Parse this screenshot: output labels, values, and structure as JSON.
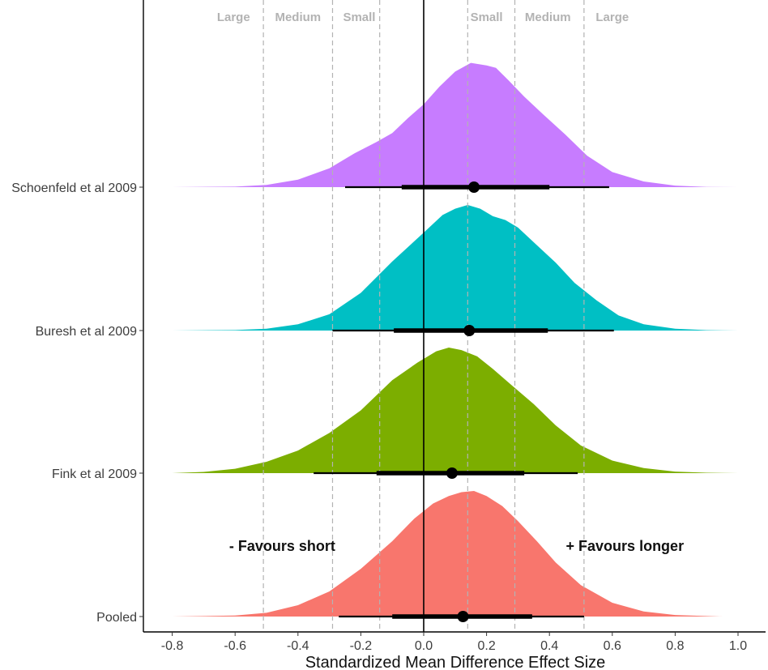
{
  "chart_data": {
    "type": "density-ridge",
    "xlabel": "Standardized Mean Difference Effect Size",
    "xlim": [
      -0.9,
      1.05
    ],
    "x_ticks": [
      -0.8,
      -0.6,
      -0.4,
      -0.2,
      0.0,
      0.2,
      0.4,
      0.6,
      0.8,
      1.0
    ],
    "x_tick_labels": [
      "-0.8",
      "-0.6",
      "-0.4",
      "-0.2",
      "0.0",
      "0.2",
      "0.4",
      "0.6",
      "0.8",
      "1.0"
    ],
    "categories": [
      "Schoenfeld et al 2009",
      "Buresh et al 2009",
      "Fink et al 2009",
      "Pooled"
    ],
    "grid": false,
    "reference_line": 0.0,
    "threshold_lines": [
      -0.51,
      -0.29,
      -0.14,
      0.14,
      0.29,
      0.51
    ],
    "zone_labels": [
      {
        "text": "Large",
        "x": -0.605
      },
      {
        "text": "Medium",
        "x": -0.4
      },
      {
        "text": "Small",
        "x": -0.205
      },
      {
        "text": "Small",
        "x": 0.2
      },
      {
        "text": "Medium",
        "x": 0.395
      },
      {
        "text": "Large",
        "x": 0.6
      }
    ],
    "annotations": [
      {
        "text": "- Favours short",
        "x": -0.45
      },
      {
        "text": "+ Favours longer",
        "x": 0.64
      }
    ],
    "series": [
      {
        "name": "Schoenfeld et al 2009",
        "color": "#C77CFF",
        "support": [
          -0.8,
          1.0
        ],
        "shape": [
          [
            -0.8,
            0
          ],
          [
            -0.6,
            0.004
          ],
          [
            -0.5,
            0.018
          ],
          [
            -0.4,
            0.06
          ],
          [
            -0.3,
            0.15
          ],
          [
            -0.22,
            0.27
          ],
          [
            -0.15,
            0.36
          ],
          [
            -0.1,
            0.43
          ],
          [
            -0.05,
            0.55
          ],
          [
            0.0,
            0.66
          ],
          [
            0.05,
            0.8
          ],
          [
            0.1,
            0.92
          ],
          [
            0.15,
            0.99
          ],
          [
            0.2,
            0.97
          ],
          [
            0.23,
            0.95
          ],
          [
            0.27,
            0.85
          ],
          [
            0.32,
            0.72
          ],
          [
            0.38,
            0.58
          ],
          [
            0.45,
            0.42
          ],
          [
            0.52,
            0.25
          ],
          [
            0.6,
            0.12
          ],
          [
            0.7,
            0.045
          ],
          [
            0.8,
            0.012
          ],
          [
            0.9,
            0.002
          ],
          [
            1.0,
            0
          ]
        ],
        "point": 0.16,
        "inner": [
          -0.07,
          0.4
        ],
        "outer": [
          -0.25,
          0.59
        ]
      },
      {
        "name": "Buresh et al 2009",
        "color": "#00BFC4",
        "support": [
          -0.8,
          1.0
        ],
        "shape": [
          [
            -0.8,
            0
          ],
          [
            -0.6,
            0.004
          ],
          [
            -0.5,
            0.015
          ],
          [
            -0.4,
            0.05
          ],
          [
            -0.3,
            0.13
          ],
          [
            -0.2,
            0.3
          ],
          [
            -0.1,
            0.55
          ],
          [
            0.0,
            0.78
          ],
          [
            0.06,
            0.92
          ],
          [
            0.1,
            0.97
          ],
          [
            0.14,
            1.0
          ],
          [
            0.18,
            0.97
          ],
          [
            0.22,
            0.91
          ],
          [
            0.26,
            0.88
          ],
          [
            0.3,
            0.82
          ],
          [
            0.36,
            0.68
          ],
          [
            0.42,
            0.54
          ],
          [
            0.48,
            0.38
          ],
          [
            0.55,
            0.24
          ],
          [
            0.62,
            0.12
          ],
          [
            0.7,
            0.05
          ],
          [
            0.8,
            0.015
          ],
          [
            0.9,
            0.003
          ],
          [
            1.0,
            0
          ]
        ],
        "point": 0.145,
        "inner": [
          -0.095,
          0.395
        ],
        "outer": [
          -0.29,
          0.605
        ]
      },
      {
        "name": "Fink et al 2009",
        "color": "#7CAE00",
        "support": [
          -0.8,
          1.0
        ],
        "shape": [
          [
            -0.8,
            0
          ],
          [
            -0.7,
            0.01
          ],
          [
            -0.6,
            0.035
          ],
          [
            -0.5,
            0.09
          ],
          [
            -0.4,
            0.18
          ],
          [
            -0.3,
            0.32
          ],
          [
            -0.2,
            0.5
          ],
          [
            -0.1,
            0.74
          ],
          [
            -0.02,
            0.88
          ],
          [
            0.04,
            0.97
          ],
          [
            0.08,
            1.0
          ],
          [
            0.12,
            0.98
          ],
          [
            0.17,
            0.93
          ],
          [
            0.22,
            0.83
          ],
          [
            0.28,
            0.7
          ],
          [
            0.35,
            0.55
          ],
          [
            0.42,
            0.38
          ],
          [
            0.5,
            0.22
          ],
          [
            0.6,
            0.1
          ],
          [
            0.7,
            0.04
          ],
          [
            0.8,
            0.012
          ],
          [
            0.9,
            0.003
          ],
          [
            1.0,
            0
          ]
        ],
        "point": 0.09,
        "inner": [
          -0.15,
          0.32
        ],
        "outer": [
          -0.35,
          0.49
        ]
      },
      {
        "name": "Pooled",
        "color": "#F8766D",
        "support": [
          -0.8,
          0.95
        ],
        "shape": [
          [
            -0.8,
            0
          ],
          [
            -0.6,
            0.008
          ],
          [
            -0.5,
            0.03
          ],
          [
            -0.4,
            0.09
          ],
          [
            -0.3,
            0.2
          ],
          [
            -0.2,
            0.38
          ],
          [
            -0.1,
            0.6
          ],
          [
            -0.03,
            0.78
          ],
          [
            0.03,
            0.9
          ],
          [
            0.08,
            0.96
          ],
          [
            0.12,
            0.99
          ],
          [
            0.16,
            1.0
          ],
          [
            0.2,
            0.96
          ],
          [
            0.25,
            0.88
          ],
          [
            0.3,
            0.76
          ],
          [
            0.36,
            0.6
          ],
          [
            0.42,
            0.43
          ],
          [
            0.5,
            0.25
          ],
          [
            0.6,
            0.11
          ],
          [
            0.7,
            0.04
          ],
          [
            0.8,
            0.012
          ],
          [
            0.95,
            0
          ]
        ],
        "point": 0.125,
        "inner": [
          -0.1,
          0.345
        ],
        "outer": [
          -0.27,
          0.51
        ]
      }
    ]
  }
}
